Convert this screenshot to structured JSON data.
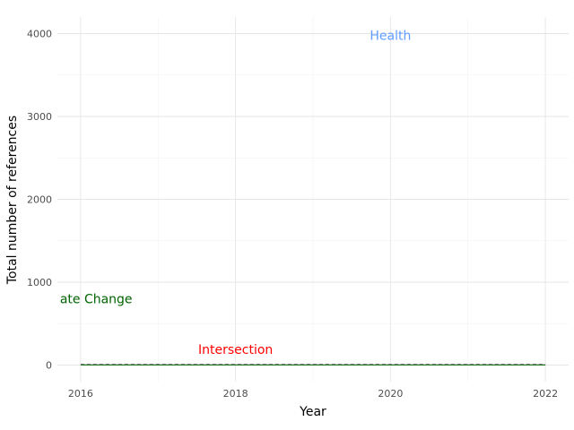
{
  "chart_data": {
    "type": "line",
    "title": "",
    "xlabel": "Year",
    "ylabel": "Total number of references",
    "xlim": [
      2015.7,
      2022.3
    ],
    "ylim": [
      -200,
      4200
    ],
    "x_ticks": [
      2016,
      2018,
      2020,
      2022
    ],
    "y_ticks": [
      0,
      1000,
      2000,
      3000,
      4000
    ],
    "grid": true,
    "legend": "none",
    "x": [
      2016,
      2017,
      2018,
      2019,
      2020,
      2021,
      2022
    ],
    "series": [
      {
        "name": "Health",
        "color": "#619CFF",
        "style": "dashed",
        "values": [
          10,
          10,
          10,
          10,
          10,
          10,
          10
        ]
      },
      {
        "name": "Intersection",
        "color": "#F8766D",
        "style": "dashed",
        "values": [
          6,
          6,
          6,
          6,
          6,
          6,
          6
        ]
      },
      {
        "name": "ate Change",
        "color": "#006400",
        "style": "solid",
        "values": [
          2,
          2,
          2,
          2,
          2,
          2,
          2
        ]
      }
    ],
    "annotations": [
      {
        "text": "Health",
        "x": 2020,
        "y": 3980,
        "color": "#619CFF"
      },
      {
        "text": "ate Change",
        "x": 2016.2,
        "y": 800,
        "color": "#006400"
      },
      {
        "text": "Intersection",
        "x": 2018,
        "y": 190,
        "color": "#FF0000"
      }
    ]
  }
}
